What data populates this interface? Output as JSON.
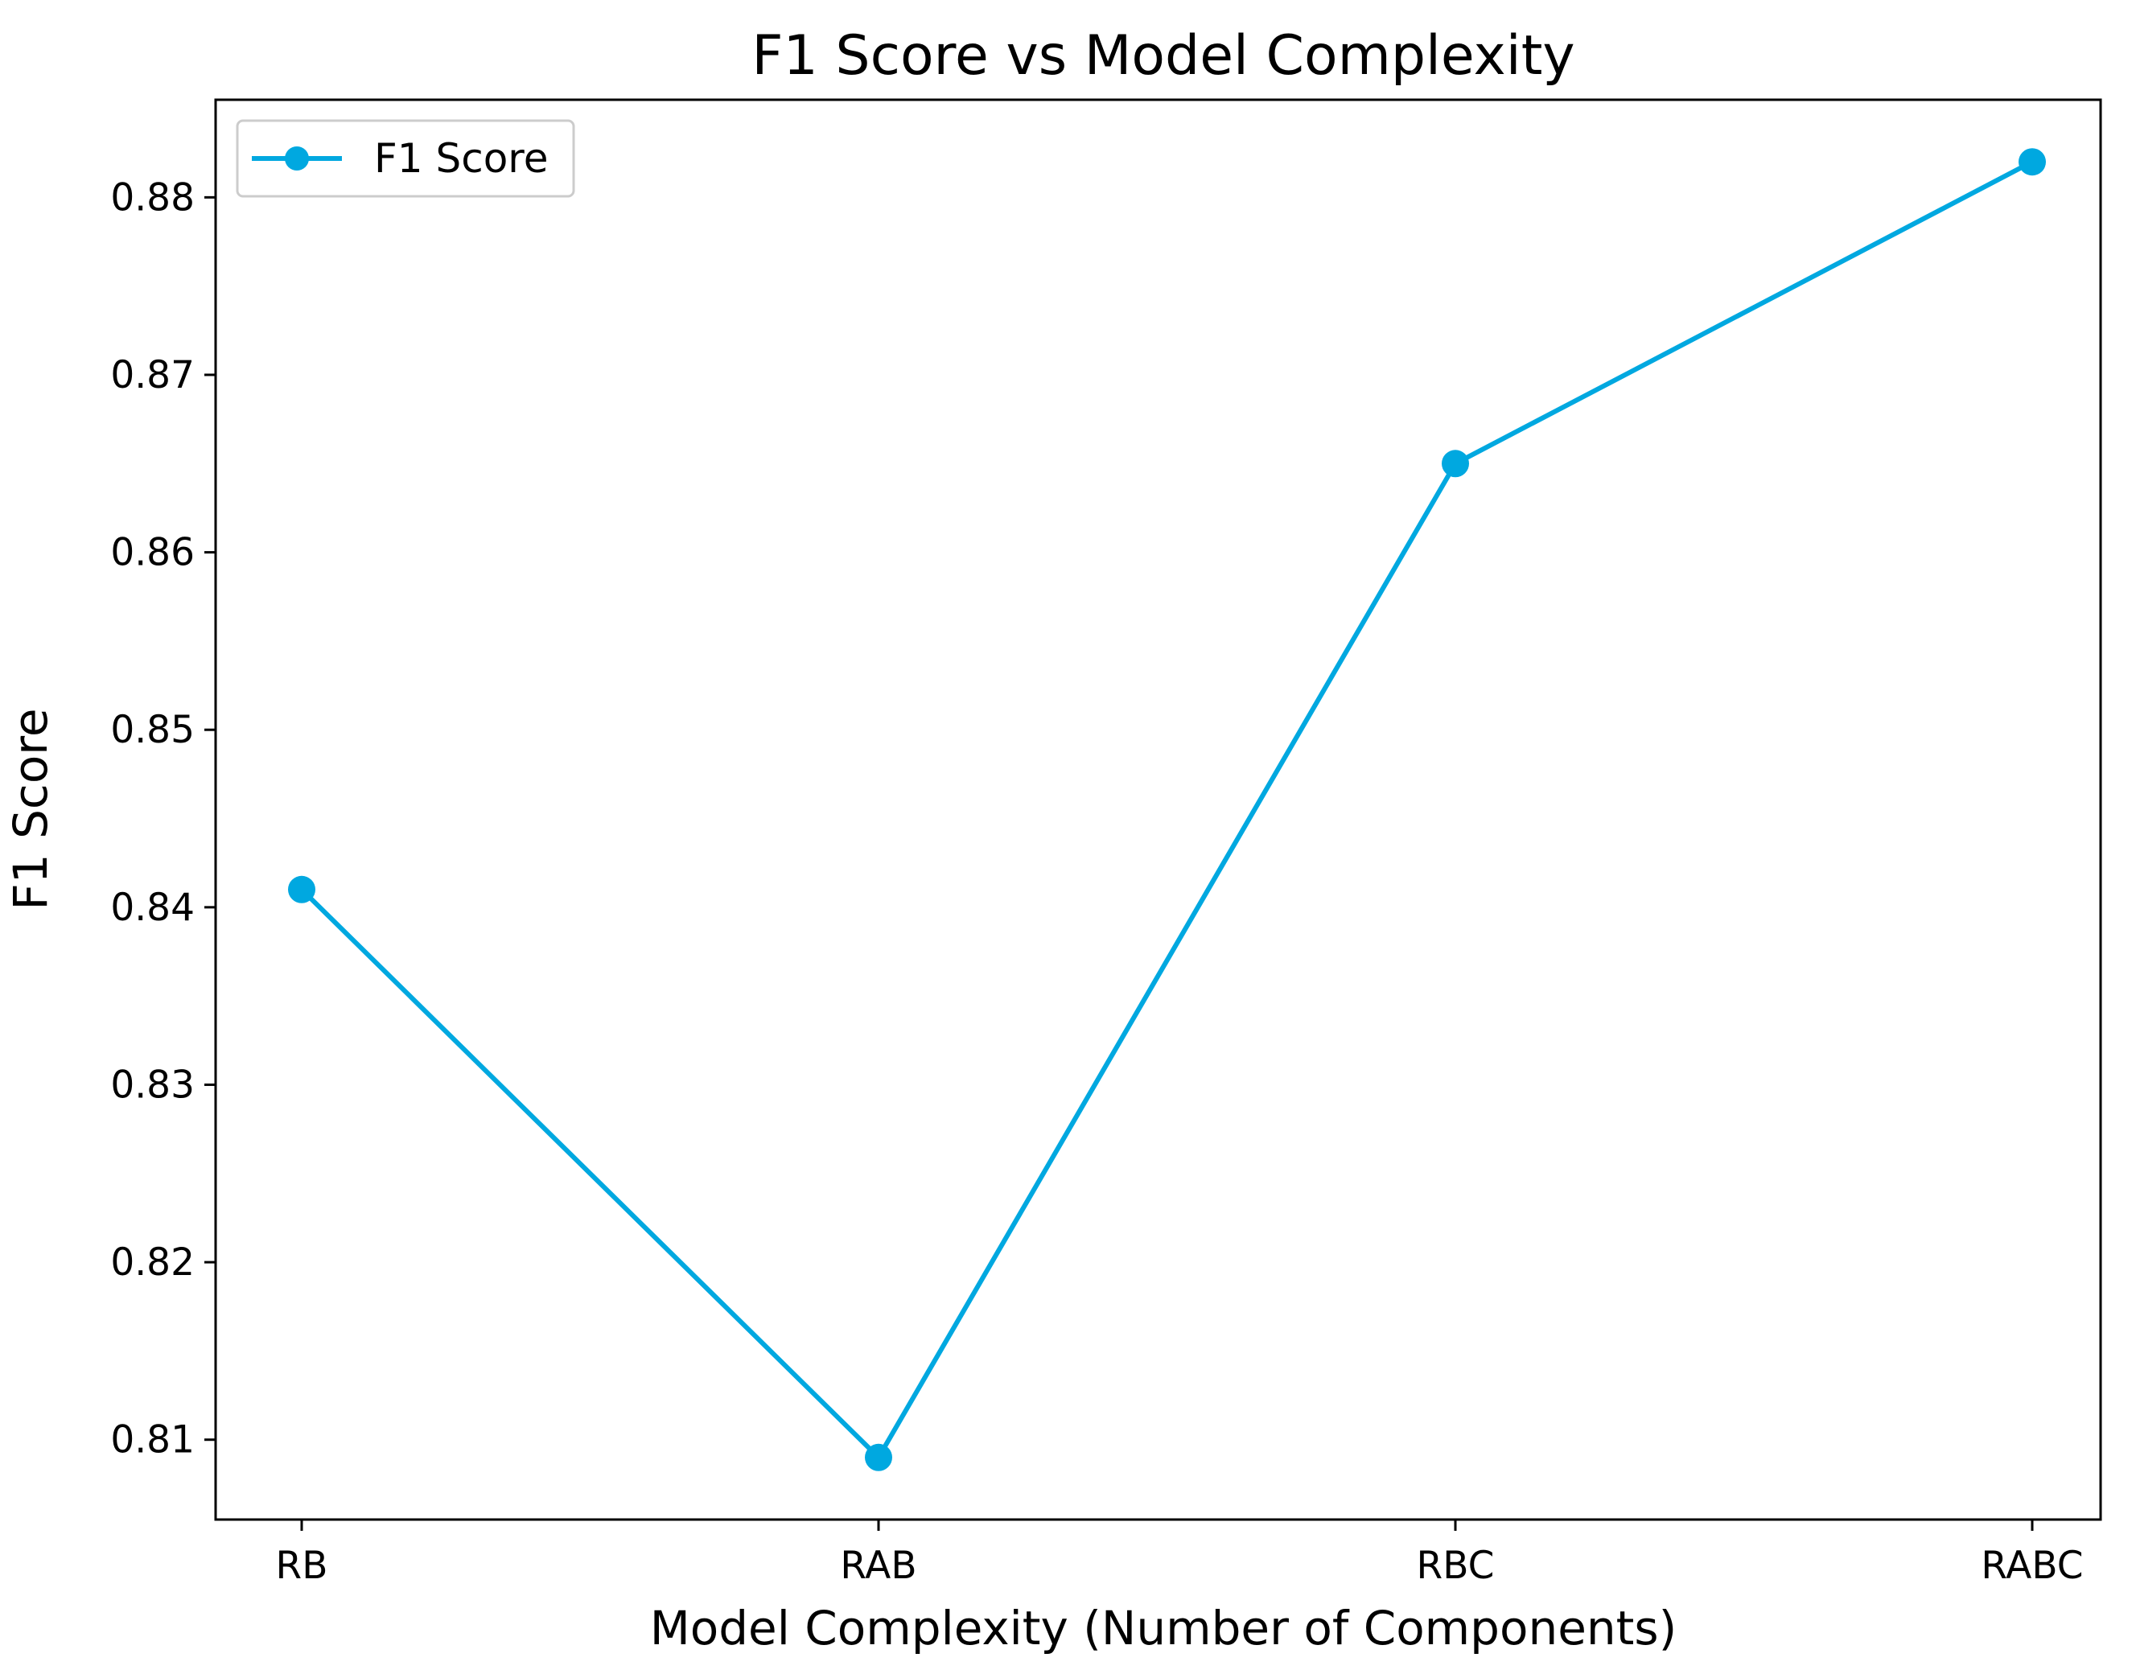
{
  "chart_data": {
    "type": "line",
    "title": "F1 Score vs Model Complexity",
    "xlabel": "Model Complexity (Number of Components)",
    "ylabel": "F1 Score",
    "categories": [
      "RB",
      "RAB",
      "RBC",
      "RABC"
    ],
    "series": [
      {
        "name": "F1 Score",
        "values": [
          0.841,
          0.809,
          0.865,
          0.882
        ],
        "color": "#00a8e0"
      }
    ],
    "ylim": [
      0.8055,
      0.8855
    ],
    "yticks": [
      "0.81",
      "0.82",
      "0.83",
      "0.84",
      "0.85",
      "0.86",
      "0.87",
      "0.88"
    ],
    "grid": false,
    "legend": "top-left"
  }
}
